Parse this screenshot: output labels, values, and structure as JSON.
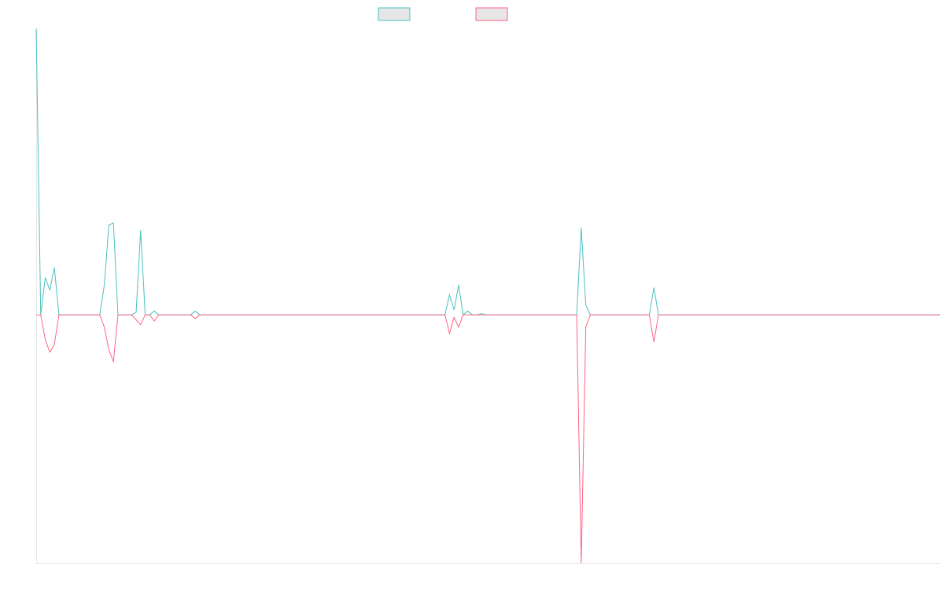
{
  "colors": {
    "series_1": "#4bc0c0",
    "series_2": "#ff6384",
    "legend_fill": "#e6e6e6",
    "axis": "#e6e6e6"
  },
  "chart_data": {
    "type": "line",
    "title": "",
    "xlabel": "",
    "ylabel": "",
    "grid": false,
    "legend_position": "top-center",
    "x_count": 200,
    "ylim": [
      -1,
      1.15
    ],
    "series": [
      {
        "name": "",
        "color": "#4bc0c0",
        "points": [
          [
            0,
            1.15
          ],
          [
            1,
            0.0
          ],
          [
            2,
            0.15
          ],
          [
            3,
            0.1
          ],
          [
            4,
            0.19
          ],
          [
            5,
            0.0
          ],
          [
            14,
            0.0
          ],
          [
            15,
            0.12
          ],
          [
            16,
            0.36
          ],
          [
            17,
            0.37
          ],
          [
            18,
            0.0
          ],
          [
            21,
            0.0
          ],
          [
            22,
            0.01
          ],
          [
            23,
            0.34
          ],
          [
            24,
            0.0
          ],
          [
            25,
            0.0
          ],
          [
            26,
            0.015
          ],
          [
            27,
            0.0
          ],
          [
            34,
            0.0
          ],
          [
            35,
            0.015
          ],
          [
            36,
            0.0
          ],
          [
            90,
            0.0
          ],
          [
            91,
            0.08
          ],
          [
            92,
            0.02
          ],
          [
            93,
            0.12
          ],
          [
            94,
            0.0
          ],
          [
            95,
            0.015
          ],
          [
            96,
            0.0
          ],
          [
            97,
            0.0
          ],
          [
            98,
            0.005
          ],
          [
            99,
            0.0
          ],
          [
            119,
            0.0
          ],
          [
            120,
            0.35
          ],
          [
            121,
            0.04
          ],
          [
            122,
            0.0
          ],
          [
            135,
            0.0
          ],
          [
            136,
            0.11
          ],
          [
            137,
            0.0
          ],
          [
            199,
            0.0
          ]
        ]
      },
      {
        "name": "",
        "color": "#ff6384",
        "points": [
          [
            0,
            0.0
          ],
          [
            1,
            0.0
          ],
          [
            2,
            -0.1
          ],
          [
            3,
            -0.15
          ],
          [
            4,
            -0.12
          ],
          [
            5,
            0.0
          ],
          [
            14,
            0.0
          ],
          [
            15,
            -0.05
          ],
          [
            16,
            -0.14
          ],
          [
            17,
            -0.19
          ],
          [
            18,
            0.0
          ],
          [
            21,
            0.0
          ],
          [
            22,
            -0.02
          ],
          [
            23,
            -0.04
          ],
          [
            24,
            0.0
          ],
          [
            25,
            0.0
          ],
          [
            26,
            -0.025
          ],
          [
            27,
            0.0
          ],
          [
            34,
            0.0
          ],
          [
            35,
            -0.015
          ],
          [
            36,
            0.0
          ],
          [
            90,
            0.0
          ],
          [
            91,
            -0.075
          ],
          [
            92,
            -0.01
          ],
          [
            93,
            -0.05
          ],
          [
            94,
            0.0
          ],
          [
            95,
            0.0
          ],
          [
            96,
            0.0
          ],
          [
            97,
            0.0
          ],
          [
            98,
            0.0
          ],
          [
            99,
            0.0
          ],
          [
            119,
            0.0
          ],
          [
            120,
            -1.0
          ],
          [
            121,
            -0.05
          ],
          [
            122,
            0.0
          ],
          [
            135,
            0.0
          ],
          [
            136,
            -0.11
          ],
          [
            137,
            0.0
          ],
          [
            199,
            0.0
          ]
        ]
      }
    ]
  }
}
